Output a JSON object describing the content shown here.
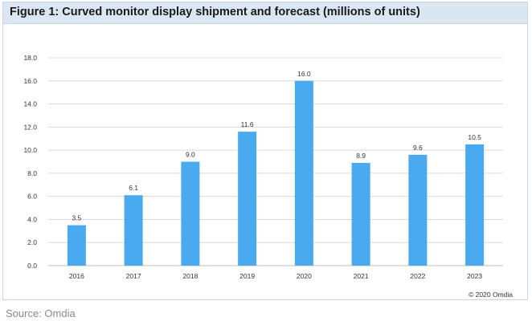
{
  "figure": {
    "title": "Figure 1: Curved monitor display shipment and forecast (millions of units)",
    "copyright": "© 2020 Omdia"
  },
  "source": {
    "text": "Source: Omdia"
  },
  "colors": {
    "bar": "#4aaaf0",
    "grid": "#d9d9d9",
    "title_bg": "#dbe6f3"
  },
  "chart_data": {
    "type": "bar",
    "title": "Figure 1: Curved monitor display shipment and forecast (millions of units)",
    "xlabel": "",
    "ylabel": "",
    "categories": [
      "2016",
      "2017",
      "2018",
      "2019",
      "2020",
      "2021",
      "2022",
      "2023"
    ],
    "values": [
      3.5,
      6.1,
      9.0,
      11.6,
      16.0,
      8.9,
      9.6,
      10.5
    ],
    "data_labels": [
      "3.5",
      "6.1",
      "9.0",
      "11.6",
      "16.0",
      "8.9",
      "9.6",
      "10.5"
    ],
    "ylim": [
      0,
      18
    ],
    "yticks": [
      0,
      2,
      4,
      6,
      8,
      10,
      12,
      14,
      16,
      18
    ],
    "ytick_labels": [
      "0.0",
      "2.0",
      "4.0",
      "6.0",
      "8.0",
      "10.0",
      "12.0",
      "14.0",
      "16.0",
      "18.0"
    ],
    "grid": true,
    "legend": "none"
  }
}
